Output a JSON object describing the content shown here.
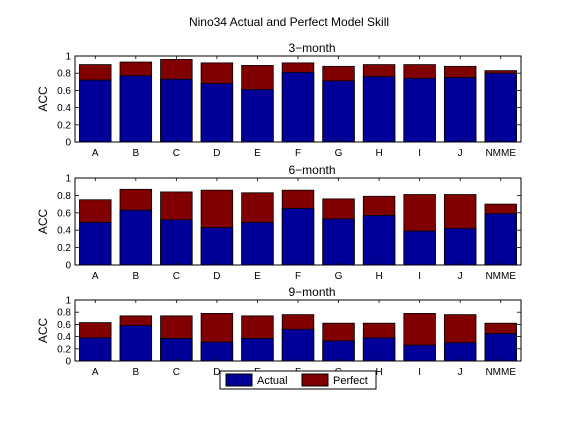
{
  "title": "Nino34 Actual and Perfect Model Skill",
  "colors": {
    "actual": "#000099",
    "perfect": "#800000"
  },
  "legend": {
    "items": [
      "Actual",
      "Perfect"
    ]
  },
  "chart_data": [
    {
      "type": "bar",
      "title": "3-month",
      "ylabel": "ACC",
      "ylim": [
        0,
        1
      ],
      "yticks": [
        "0",
        "0.2",
        "0.4",
        "0.6",
        "0.8",
        "1"
      ],
      "categories": [
        "A",
        "B",
        "C",
        "D",
        "E",
        "F",
        "G",
        "H",
        "I",
        "J",
        "NMME"
      ],
      "series": [
        {
          "name": "Actual",
          "values": [
            0.72,
            0.77,
            0.73,
            0.68,
            0.61,
            0.81,
            0.71,
            0.76,
            0.74,
            0.75,
            0.8
          ]
        },
        {
          "name": "Perfect",
          "values": [
            0.9,
            0.93,
            0.96,
            0.92,
            0.89,
            0.92,
            0.88,
            0.9,
            0.9,
            0.88,
            0.83
          ]
        }
      ]
    },
    {
      "type": "bar",
      "title": "6-month",
      "ylabel": "ACC",
      "ylim": [
        0,
        1
      ],
      "yticks": [
        "0",
        "0.2",
        "0.4",
        "0.6",
        "0.8",
        "1"
      ],
      "categories": [
        "A",
        "B",
        "C",
        "D",
        "E",
        "F",
        "G",
        "H",
        "I",
        "J",
        "NMME"
      ],
      "series": [
        {
          "name": "Actual",
          "values": [
            0.49,
            0.63,
            0.52,
            0.43,
            0.49,
            0.65,
            0.53,
            0.57,
            0.39,
            0.42,
            0.59
          ]
        },
        {
          "name": "Perfect",
          "values": [
            0.75,
            0.87,
            0.84,
            0.86,
            0.83,
            0.86,
            0.76,
            0.79,
            0.81,
            0.81,
            0.7
          ]
        }
      ]
    },
    {
      "type": "bar",
      "title": "9-month",
      "ylabel": "ACC",
      "ylim": [
        0,
        1
      ],
      "yticks": [
        "0",
        "0.2",
        "0.4",
        "0.6",
        "0.8",
        "1"
      ],
      "categories": [
        "A",
        "B",
        "C",
        "D",
        "E",
        "F",
        "G",
        "H",
        "I",
        "J",
        "NMME"
      ],
      "series": [
        {
          "name": "Actual",
          "values": [
            0.38,
            0.58,
            0.37,
            0.31,
            0.37,
            0.52,
            0.33,
            0.38,
            0.26,
            0.3,
            0.45
          ]
        },
        {
          "name": "Perfect",
          "values": [
            0.63,
            0.74,
            0.74,
            0.78,
            0.74,
            0.76,
            0.62,
            0.62,
            0.78,
            0.76,
            0.62
          ]
        }
      ]
    }
  ]
}
